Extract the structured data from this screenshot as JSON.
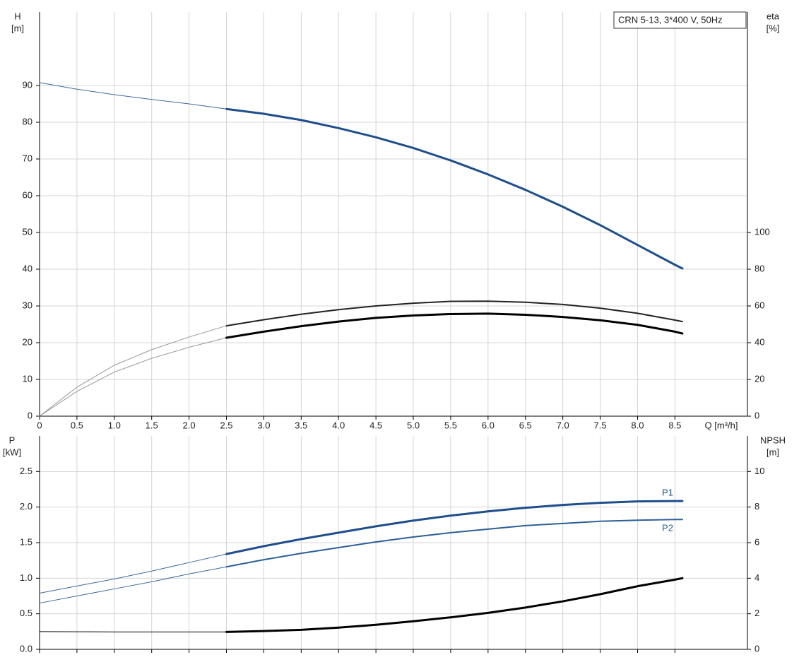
{
  "chart_data": [
    {
      "type": "line",
      "annotation": "CRN 5-13, 3*400 V, 50Hz",
      "ylabel": [
        "H",
        "[m]"
      ],
      "y2label": [
        "eta",
        "[%]"
      ],
      "xlabel": "Q [m³/h]",
      "xlim": [
        0,
        9.47
      ],
      "ylim": [
        0,
        110
      ],
      "y2lim": [
        0,
        220
      ],
      "grid": true,
      "xticks": [
        0,
        0.5,
        {
          "value": 1,
          "label": "1.0"
        },
        1.5,
        {
          "value": 2,
          "label": "2.0"
        },
        2.5,
        {
          "value": 3,
          "label": "3.0"
        },
        3.5,
        {
          "value": 4,
          "label": "4.0"
        },
        4.5,
        {
          "value": 5,
          "label": "5.0"
        },
        5.5,
        {
          "value": 6,
          "label": "6.0"
        },
        6.5,
        {
          "value": 7,
          "label": "7.0"
        },
        7.5,
        {
          "value": 8,
          "label": "8.0"
        },
        8.5
      ],
      "yticks": [
        0,
        10,
        20,
        30,
        40,
        50,
        60,
        70,
        80,
        90
      ],
      "y2ticks": [
        0,
        20,
        40,
        60,
        80,
        100
      ],
      "series": [
        {
          "color": "#3d6a9c",
          "width": 1,
          "x": [
            0,
            0.5,
            1,
            1.5,
            2,
            2.5
          ],
          "values": [
            90.8,
            89,
            87.5,
            86.2,
            85,
            83.6
          ]
        },
        {
          "color": "#1f4e8c",
          "width": 3,
          "x": [
            2.5,
            3,
            3.5,
            4,
            4.5,
            5,
            5.5,
            6,
            6.5,
            7,
            7.5,
            8,
            8.5,
            8.6
          ],
          "values": [
            83.6,
            82.3,
            80.6,
            78.4,
            75.9,
            73,
            69.6,
            65.8,
            61.6,
            57,
            52,
            46.6,
            41.2,
            40.2
          ]
        },
        {
          "axis": "y2",
          "color": "#999999",
          "width": 1,
          "x": [
            0,
            0.5,
            1,
            1.5,
            2,
            2.5
          ],
          "values": [
            0,
            15.8,
            27.7,
            36.2,
            43.1,
            49.2
          ]
        },
        {
          "axis": "y2",
          "color": "#222222",
          "width": 2,
          "x": [
            2.5,
            3,
            3.5,
            4,
            4.5,
            5,
            5.5,
            6,
            6.5,
            7,
            7.5,
            8,
            8.5,
            8.6
          ],
          "values": [
            49.2,
            52.5,
            55.5,
            58,
            60,
            61.5,
            62.5,
            62.6,
            62,
            60.8,
            58.8,
            56,
            52.3,
            51.5
          ]
        },
        {
          "axis": "y2",
          "color": "#999999",
          "width": 1,
          "x": [
            0,
            0.5,
            1,
            1.5,
            2,
            2.5
          ],
          "values": [
            0,
            13.5,
            24,
            31.5,
            37.5,
            42.7
          ]
        },
        {
          "axis": "y2",
          "color": "#000000",
          "width": 3,
          "x": [
            2.5,
            3,
            3.5,
            4,
            4.5,
            5,
            5.5,
            6,
            6.5,
            7,
            7.5,
            8,
            8.5,
            8.6
          ],
          "values": [
            42.7,
            46,
            49,
            51.5,
            53.5,
            54.8,
            55.6,
            55.8,
            55.2,
            54,
            52.2,
            49.7,
            46,
            45
          ]
        }
      ]
    },
    {
      "type": "line",
      "ylabel": [
        "P",
        "[kW]"
      ],
      "y2label": [
        "NPSH",
        "[m]"
      ],
      "xlim": [
        0,
        9.47
      ],
      "ylim": [
        0,
        3
      ],
      "y2lim": [
        0,
        12
      ],
      "grid": true,
      "yticks": [
        {
          "value": 0,
          "label": "0.0"
        },
        0.5,
        {
          "value": 1,
          "label": "1.0"
        },
        1.5,
        {
          "value": 2,
          "label": "2.0"
        },
        2.5
      ],
      "y2ticks": [
        0,
        2,
        4,
        6,
        8,
        10
      ],
      "series": [
        {
          "color": "#3d6a9c",
          "width": 1,
          "x": [
            0,
            0.5,
            1,
            1.5,
            2,
            2.5
          ],
          "values": [
            0.79,
            0.89,
            0.99,
            1.1,
            1.22,
            1.34
          ]
        },
        {
          "name": "P1",
          "color": "#1f4e8c",
          "width": 3,
          "x": [
            2.5,
            3,
            3.5,
            4,
            4.5,
            5,
            5.5,
            6,
            6.5,
            7,
            7.5,
            8,
            8.5,
            8.6
          ],
          "values": [
            1.34,
            1.45,
            1.55,
            1.64,
            1.73,
            1.81,
            1.88,
            1.94,
            1.99,
            2.03,
            2.06,
            2.08,
            2.085,
            2.085
          ]
        },
        {
          "color": "#3d6a9c",
          "width": 1,
          "x": [
            0,
            0.5,
            1,
            1.5,
            2,
            2.5
          ],
          "values": [
            0.65,
            0.75,
            0.85,
            0.95,
            1.06,
            1.16
          ]
        },
        {
          "name": "P2",
          "color": "#2d5f96",
          "width": 2,
          "x": [
            2.5,
            3,
            3.5,
            4,
            4.5,
            5,
            5.5,
            6,
            6.5,
            7,
            7.5,
            8,
            8.5,
            8.6
          ],
          "values": [
            1.16,
            1.26,
            1.35,
            1.43,
            1.51,
            1.58,
            1.64,
            1.69,
            1.74,
            1.77,
            1.8,
            1.815,
            1.825,
            1.825
          ]
        },
        {
          "axis": "y2",
          "color": "#000000",
          "width": 1,
          "x": [
            0,
            0.5,
            1,
            1.5,
            2,
            2.5
          ],
          "values": [
            1,
            0.99,
            0.98,
            0.98,
            0.98,
            0.98
          ]
        },
        {
          "axis": "y2",
          "color": "#000000",
          "width": 3,
          "x": [
            2.5,
            3,
            3.5,
            4,
            4.5,
            5,
            5.5,
            6,
            6.5,
            7,
            7.5,
            8,
            8.5,
            8.6
          ],
          "values": [
            0.98,
            1.03,
            1.1,
            1.22,
            1.38,
            1.58,
            1.8,
            2.05,
            2.35,
            2.7,
            3.1,
            3.55,
            3.92,
            4.0
          ]
        }
      ]
    }
  ]
}
